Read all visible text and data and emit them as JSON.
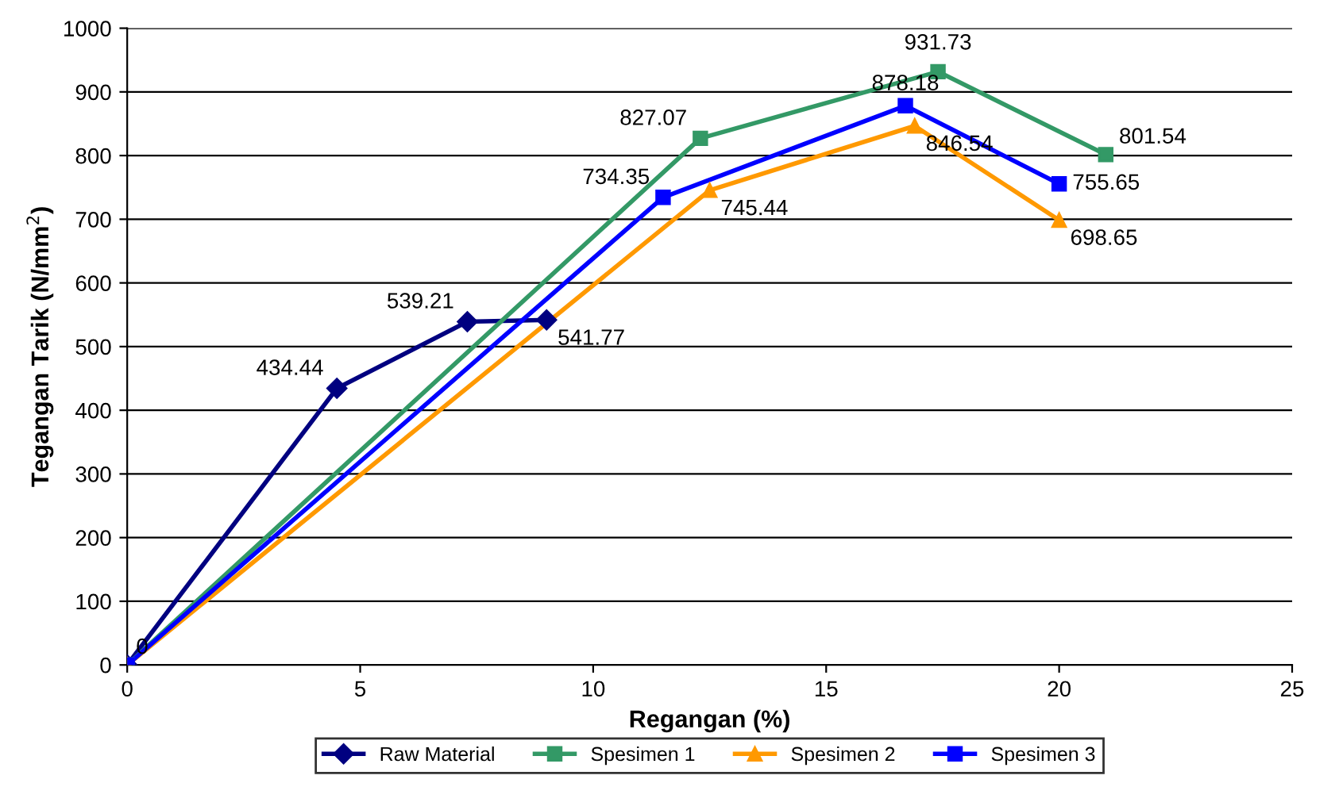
{
  "chart_data": {
    "type": "line",
    "xlabel": "Regangan (%)",
    "ylabel": "Tegangan Tarik (N/mm$^{2}$)",
    "xlim": [
      0,
      25
    ],
    "xticks": [
      0,
      5,
      10,
      15,
      20,
      25
    ],
    "ylim": [
      0,
      1000
    ],
    "yticks": [
      0,
      100,
      200,
      300,
      400,
      500,
      600,
      700,
      800,
      900,
      1000
    ],
    "grid": "y",
    "legend": "bottom",
    "line_style": "solid",
    "series": [
      {
        "name": "Raw Material",
        "color": "#000080",
        "marker": "diamond",
        "x": [
          0,
          4.5,
          7.3,
          9.0
        ],
        "values": [
          0,
          434.44,
          539.21,
          541.77
        ],
        "value_labels": [
          "0",
          "434.44",
          "539.21",
          "541.77"
        ]
      },
      {
        "name": "Spesimen 1",
        "color": "#339966",
        "marker": "square",
        "x": [
          0,
          12.3,
          17.4,
          21.0
        ],
        "values": [
          0,
          827.07,
          931.73,
          801.54
        ],
        "value_labels": [
          null,
          "827.07",
          "931.73",
          "801.54"
        ]
      },
      {
        "name": "Spesimen 2",
        "color": "#ff9900",
        "marker": "triangle",
        "x": [
          0,
          12.5,
          16.9,
          20.0
        ],
        "values": [
          0,
          745.44,
          846.54,
          698.65
        ],
        "value_labels": [
          null,
          "745.44",
          "846.54",
          "698.65"
        ]
      },
      {
        "name": "Spesimen 3",
        "color": "#0000ff",
        "marker": "square",
        "x": [
          0,
          11.5,
          16.7,
          20.0
        ],
        "values": [
          0,
          734.35,
          878.18,
          755.65
        ],
        "value_labels": [
          null,
          "734.35",
          "878.18",
          "755.65"
        ]
      }
    ]
  }
}
